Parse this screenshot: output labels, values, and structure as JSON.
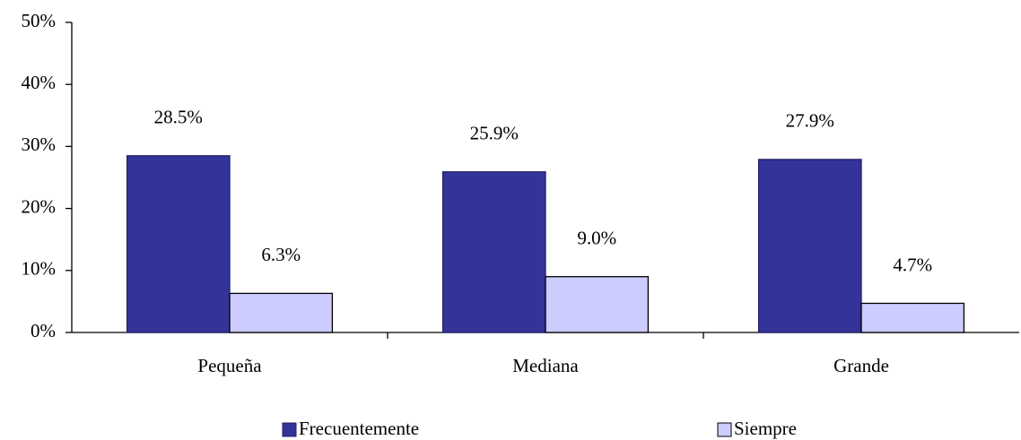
{
  "chart_data": {
    "type": "bar",
    "categories": [
      "Pequeña",
      "Mediana",
      "Grande"
    ],
    "series": [
      {
        "name": "Frecuentemente",
        "color": "#333399",
        "values": [
          28.5,
          25.9,
          27.9
        ],
        "value_labels": [
          "28.5%",
          "25.9%",
          "27.9%"
        ]
      },
      {
        "name": "Siempre",
        "color": "#ccccff",
        "values": [
          6.3,
          9.0,
          4.7
        ],
        "value_labels": [
          "6.3%",
          "9.0%",
          "4.7%"
        ]
      }
    ],
    "ylim": [
      0,
      50
    ],
    "yticks": [
      {
        "value": 0,
        "label": "0%"
      },
      {
        "value": 10,
        "label": "10%"
      },
      {
        "value": 20,
        "label": "20%"
      },
      {
        "value": 30,
        "label": "30%"
      },
      {
        "value": 40,
        "label": "40%"
      },
      {
        "value": 50,
        "label": "50%"
      }
    ],
    "legend": "bottom"
  }
}
